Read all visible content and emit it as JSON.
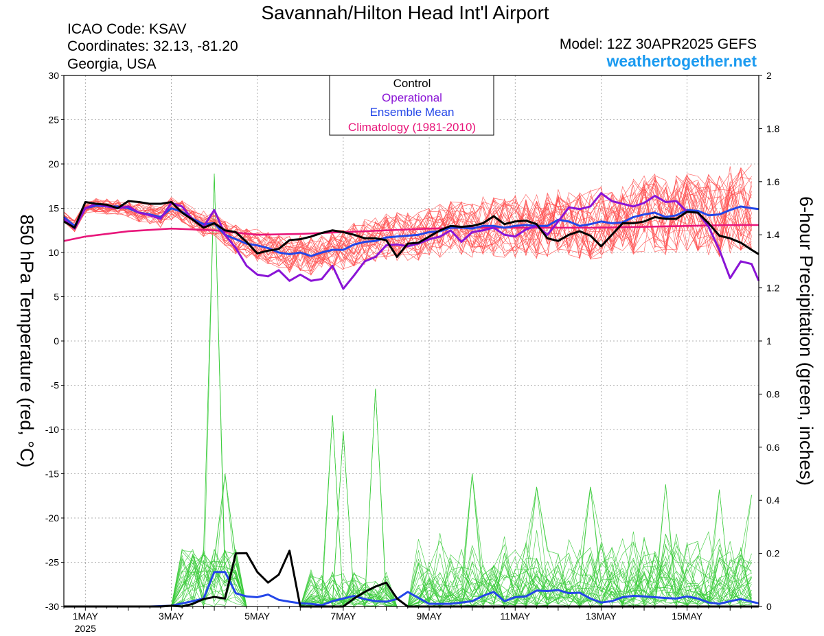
{
  "header": {
    "title": "Savannah/Hilton Head Int'l Airport",
    "icao": "ICAO Code: KSAV",
    "coords": "Coordinates: 32.13, -81.20",
    "region": "Georgia, USA",
    "model": "Model: 12Z 30APR2025 GEFS",
    "site": "weathertogether.net"
  },
  "legend": {
    "control": "Control",
    "operational": "Operational",
    "mean": "Ensemble Mean",
    "climo": "Climatology (1981-2010)"
  },
  "colors": {
    "control": "#000000",
    "operational": "#8a14d6",
    "mean": "#2346e8",
    "climo": "#e8167a",
    "members_temp": "#ff4d4d",
    "members_precip": "#3ccc3c",
    "site": "#1a9af0"
  },
  "chart_data": {
    "type": "line",
    "title": "Savannah/Hilton Head Int'l Airport",
    "ylabel": "850 hPa Temperature (red, °C)",
    "y2label": "6-hour Precipitation (green, inches)",
    "xlim_days": [
      30.5,
      46.667
    ],
    "ylim": [
      -30,
      30
    ],
    "y2lim": [
      0,
      2
    ],
    "yticks": [
      -30,
      -25,
      -20,
      -15,
      -10,
      -5,
      0,
      5,
      10,
      15,
      20,
      25,
      30
    ],
    "y2ticks": [
      "0",
      "0.2",
      "0.4",
      "0.6",
      "0.8",
      "1",
      "1.2",
      "1.4",
      "1.6",
      "1.8",
      "2"
    ],
    "xticks": [
      {
        "day": 31,
        "label": "1MAY",
        "sub": "2025"
      },
      {
        "day": 33,
        "label": "3MAY",
        "sub": ""
      },
      {
        "day": 35,
        "label": "5MAY",
        "sub": ""
      },
      {
        "day": 37,
        "label": "7MAY",
        "sub": ""
      },
      {
        "day": 39,
        "label": "9MAY",
        "sub": ""
      },
      {
        "day": 41,
        "label": "11MAY",
        "sub": ""
      },
      {
        "day": 43,
        "label": "13MAY",
        "sub": ""
      },
      {
        "day": 45,
        "label": "15MAY",
        "sub": ""
      }
    ],
    "grid": true,
    "legend_position": "top-center",
    "series": [
      {
        "key": "climo",
        "axis": "temp",
        "x": [
          30.5,
          31,
          32,
          33,
          34,
          35,
          36,
          37,
          38,
          39,
          40,
          41,
          42,
          43,
          44,
          45,
          46,
          46.667
        ],
        "y": [
          11.3,
          11.8,
          12.4,
          12.7,
          12.5,
          12.0,
          12.1,
          12.3,
          12.5,
          12.7,
          12.8,
          12.8,
          12.8,
          12.8,
          12.9,
          13.0,
          13.1,
          13.1
        ]
      },
      {
        "key": "control",
        "axis": "temp",
        "x": [
          30.5,
          30.75,
          31,
          31.25,
          31.5,
          31.75,
          32,
          32.25,
          32.5,
          32.75,
          33,
          33.25,
          33.5,
          33.75,
          34,
          34.25,
          34.5,
          34.75,
          35,
          35.25,
          35.5,
          35.75,
          36,
          36.25,
          36.5,
          36.75,
          37,
          37.25,
          37.5,
          37.75,
          38,
          38.25,
          38.5,
          38.75,
          39,
          39.25,
          39.5,
          39.75,
          40,
          40.25,
          40.5,
          40.75,
          41,
          41.25,
          41.5,
          41.75,
          42,
          42.25,
          42.5,
          42.75,
          43,
          43.25,
          43.5,
          43.75,
          44,
          44.25,
          44.5,
          44.75,
          45,
          45.25,
          45.5,
          45.75,
          46,
          46.25,
          46.5,
          46.667
        ],
        "y": [
          13.5,
          12.8,
          15.7,
          15.5,
          15.4,
          15.0,
          15.8,
          15.7,
          15.5,
          15.5,
          15.7,
          14.5,
          13.7,
          12.8,
          13.3,
          12.5,
          12.3,
          11.2,
          9.9,
          10.2,
          10.4,
          11.4,
          11.5,
          11.8,
          12.2,
          12.5,
          12.3,
          12.0,
          11.6,
          11.6,
          11.4,
          9.5,
          11.0,
          11.1,
          11.8,
          12.5,
          13.0,
          12.9,
          13.0,
          13.3,
          14.1,
          13.2,
          13.5,
          13.6,
          13.2,
          11.6,
          11.3,
          12.0,
          12.4,
          11.9,
          10.7,
          12.0,
          13.3,
          13.3,
          13.5,
          14.0,
          13.8,
          13.8,
          14.6,
          14.5,
          13.3,
          11.9,
          11.6,
          11.1,
          10.3,
          9.8
        ]
      },
      {
        "key": "operational",
        "axis": "temp",
        "x": [
          30.5,
          30.75,
          31,
          31.25,
          31.5,
          31.75,
          32,
          32.25,
          32.5,
          32.75,
          33,
          33.25,
          33.5,
          33.75,
          34,
          34.25,
          34.5,
          34.75,
          35,
          35.25,
          35.5,
          35.75,
          36,
          36.25,
          36.5,
          36.75,
          37,
          37.25,
          37.5,
          37.75,
          38,
          38.25,
          38.5,
          38.75,
          39,
          39.25,
          39.5,
          39.75,
          40,
          40.25,
          40.5,
          40.75,
          41,
          41.25,
          41.5,
          41.75,
          42,
          42.25,
          42.5,
          42.75,
          43,
          43.25,
          43.5,
          43.75,
          44,
          44.25,
          44.5,
          44.75,
          45,
          45.25,
          45.5,
          45.75,
          46,
          46.25,
          46.5,
          46.667
        ],
        "y": [
          13.8,
          12.7,
          15.0,
          15.5,
          15.2,
          15.0,
          15.2,
          14.5,
          14.2,
          13.8,
          15.6,
          15.2,
          13.7,
          12.9,
          14.8,
          12.0,
          10.5,
          8.5,
          7.5,
          7.3,
          8.0,
          6.8,
          7.5,
          6.8,
          7.0,
          8.5,
          5.9,
          7.4,
          9.0,
          9.5,
          10.8,
          10.9,
          10.7,
          11.0,
          11.5,
          11.8,
          12.5,
          11.2,
          12.3,
          12.5,
          12.8,
          12.0,
          11.8,
          12.6,
          13.0,
          12.0,
          13.5,
          15.1,
          14.9,
          15.2,
          16.7,
          15.8,
          15.5,
          15.2,
          15.6,
          16.4,
          15.7,
          15.8,
          14.6,
          14.5,
          12.9,
          10.3,
          7.1,
          9.0,
          8.7,
          6.8
        ]
      },
      {
        "key": "mean",
        "axis": "temp",
        "x": [
          30.5,
          30.75,
          31,
          31.25,
          31.5,
          31.75,
          32,
          32.25,
          32.5,
          32.75,
          33,
          33.25,
          33.5,
          33.75,
          34,
          34.25,
          34.5,
          34.75,
          35,
          35.25,
          35.5,
          35.75,
          36,
          36.25,
          36.5,
          36.75,
          37,
          37.25,
          37.5,
          37.75,
          38,
          38.25,
          38.5,
          38.75,
          39,
          39.25,
          39.5,
          39.75,
          40,
          40.25,
          40.5,
          40.75,
          41,
          41.25,
          41.5,
          41.75,
          42,
          42.25,
          42.5,
          42.75,
          43,
          43.25,
          43.5,
          43.75,
          44,
          44.25,
          44.5,
          44.75,
          45,
          45.25,
          45.5,
          45.75,
          46,
          46.25,
          46.5,
          46.667
        ],
        "y": [
          14.0,
          13.0,
          15.0,
          15.3,
          15.2,
          15.2,
          15.0,
          14.5,
          14.3,
          14.0,
          15.0,
          14.6,
          13.8,
          13.2,
          13.3,
          12.0,
          11.5,
          11.0,
          10.8,
          10.5,
          10.0,
          9.8,
          10.0,
          9.6,
          10.0,
          10.3,
          10.3,
          10.9,
          11.2,
          11.3,
          11.7,
          11.8,
          11.9,
          12.0,
          12.3,
          12.4,
          12.8,
          12.8,
          12.7,
          13.0,
          13.0,
          12.8,
          13.0,
          13.1,
          13.0,
          13.0,
          13.7,
          13.5,
          13.0,
          13.2,
          13.5,
          13.3,
          13.4,
          14.0,
          14.3,
          14.5,
          14.0,
          14.2,
          14.8,
          14.7,
          14.2,
          14.3,
          14.8,
          15.2,
          15.0,
          14.9
        ]
      },
      {
        "key": "control",
        "axis": "precip",
        "x": [
          30.5,
          32.75,
          33,
          33.25,
          33.5,
          33.75,
          34,
          34.25,
          34.5,
          34.75,
          35,
          35.25,
          35.5,
          35.75,
          36,
          36.25,
          36.5,
          36.75,
          37,
          37.25,
          37.5,
          37.75,
          38,
          38.25,
          38.5,
          46.667
        ],
        "y": [
          0,
          0,
          0.003,
          0,
          0.01,
          0.028,
          0.036,
          0.03,
          0.2,
          0.201,
          0.13,
          0.09,
          0.12,
          0.21,
          0,
          0,
          0,
          0,
          0,
          0.03,
          0.055,
          0.075,
          0.09,
          0.03,
          0,
          0
        ]
      },
      {
        "key": "mean",
        "axis": "precip",
        "x": [
          30.5,
          32.5,
          33,
          33.5,
          33.75,
          34,
          34.25,
          34.5,
          34.75,
          35,
          35.25,
          35.5,
          35.75,
          36,
          36.25,
          36.5,
          36.75,
          37,
          37.25,
          37.5,
          37.75,
          38,
          38.25,
          38.5,
          39,
          39.5,
          40,
          40.25,
          40.5,
          40.75,
          41,
          41.25,
          41.5,
          41.75,
          42,
          42.25,
          42.5,
          42.75,
          43,
          43.25,
          43.5,
          43.75,
          44,
          44.25,
          44.5,
          44.75,
          45,
          45.25,
          45.5,
          45.75,
          46,
          46.25,
          46.5,
          46.667
        ],
        "y": [
          0,
          0,
          0.003,
          0.02,
          0.03,
          0.13,
          0.13,
          0.05,
          0.038,
          0.035,
          0.045,
          0.025,
          0.018,
          0.012,
          0.01,
          0.005,
          0.02,
          0.03,
          0.04,
          0.028,
          0.02,
          0.018,
          0.028,
          0.055,
          0.01,
          0.01,
          0.02,
          0.04,
          0.055,
          0.02,
          0.035,
          0.038,
          0.06,
          0.058,
          0.062,
          0.05,
          0.052,
          0.03,
          0.015,
          0.02,
          0.035,
          0.04,
          0.038,
          0.035,
          0.032,
          0.03,
          0.038,
          0.03,
          0.015,
          0.01,
          0.02,
          0.028,
          0.018,
          0.012
        ]
      }
    ]
  }
}
